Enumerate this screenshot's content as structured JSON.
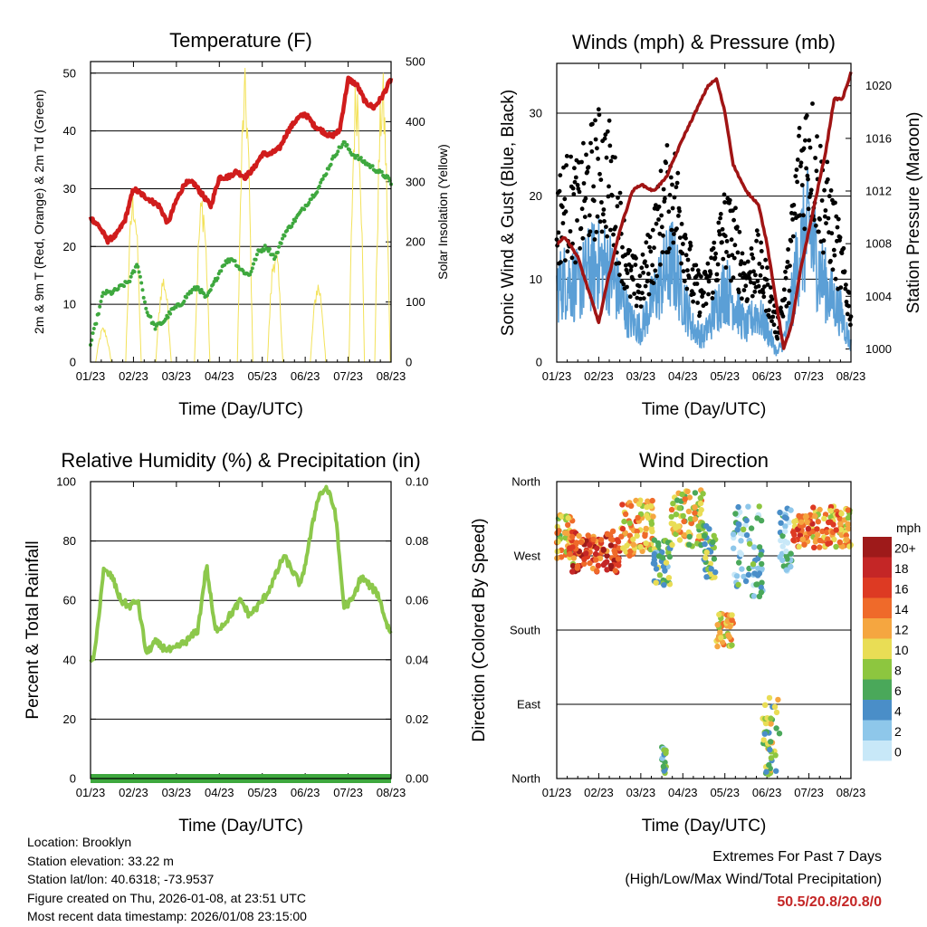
{
  "colors": {
    "temp": "#d01c1c",
    "dew": "#3ea83e",
    "solar": "#f3e25a",
    "gust": "#000000",
    "wind": "#5b9fd6",
    "pressure": "#a01414",
    "humidity": "#8cc84b",
    "precip": "#3ea83e",
    "extremes": "#c42626"
  },
  "speed_legend": {
    "title": "mph",
    "labels": [
      "20+",
      "18",
      "16",
      "14",
      "12",
      "10",
      "8",
      "6",
      "4",
      "2",
      "0"
    ],
    "colors": [
      "#9e1a1a",
      "#c42626",
      "#dd3a23",
      "#ef6a2a",
      "#f5a640",
      "#e9dd55",
      "#8dc63f",
      "#4aa85a",
      "#4a8ec8",
      "#8ec7ea",
      "#c8e8f8"
    ]
  },
  "chart_data": [
    {
      "id": "temperature",
      "type": "line",
      "title": "Temperature (F)",
      "xlabel": "Time (Day/UTC)",
      "ylabel": "2m & 9m T (Red, Orange) & 2m Td (Green)",
      "ylabel_right": "Solar Insolation (Yellow)",
      "x_ticks": [
        "01/23",
        "02/23",
        "03/23",
        "04/23",
        "05/23",
        "06/23",
        "07/23",
        "08/23"
      ],
      "ylim": [
        0,
        52
      ],
      "y_ticks": [
        0,
        10,
        20,
        30,
        40,
        50
      ],
      "ylim_right": [
        0,
        500
      ],
      "y_ticks_right": [
        0,
        100,
        200,
        300,
        400,
        500
      ],
      "series": [
        {
          "name": "2m/9m Temperature",
          "x": [
            0,
            0.2,
            0.4,
            0.6,
            0.8,
            1.0,
            1.2,
            1.4,
            1.6,
            1.8,
            2.0,
            2.2,
            2.4,
            2.6,
            2.8,
            3.0,
            3.2,
            3.4,
            3.6,
            3.8,
            4.0,
            4.2,
            4.4,
            4.6,
            4.8,
            5.0,
            5.2,
            5.4,
            5.6,
            5.8,
            6.0,
            6.2,
            6.4,
            6.6,
            6.8,
            7.0
          ],
          "values": [
            25,
            23.5,
            21,
            22,
            24.5,
            30,
            29,
            28,
            27,
            24,
            28,
            31,
            31,
            29,
            27,
            32,
            32,
            33,
            32,
            33.5,
            36,
            36,
            37,
            40,
            42,
            43,
            41,
            40,
            39,
            40,
            49,
            48,
            45,
            44,
            46,
            49
          ]
        },
        {
          "name": "2m Dewpoint",
          "x": [
            0,
            0.1,
            0.3,
            0.5,
            0.7,
            0.9,
            1.1,
            1.3,
            1.5,
            1.7,
            1.9,
            2.1,
            2.3,
            2.5,
            2.7,
            2.9,
            3.1,
            3.3,
            3.5,
            3.7,
            3.9,
            4.1,
            4.3,
            4.5,
            4.7,
            4.9,
            5.1,
            5.3,
            5.5,
            5.7,
            5.9,
            6.1,
            6.3,
            6.5,
            6.7,
            6.9,
            7.0
          ],
          "values": [
            3,
            6,
            12,
            12,
            13,
            14,
            17,
            9,
            6,
            7,
            9,
            10,
            12,
            13,
            11,
            14,
            17,
            18,
            16,
            15,
            19,
            20,
            18,
            22,
            24,
            26,
            28,
            30,
            33,
            36,
            38,
            36,
            35,
            34,
            33,
            32,
            31
          ]
        },
        {
          "name": "Solar Insolation",
          "axis": "right",
          "peaks_day": [
            0.3,
            1.0,
            1.7,
            2.6,
            3.6,
            4.3,
            5.3,
            6.2,
            6.8
          ],
          "peaks": [
            60,
            300,
            150,
            290,
            490,
            200,
            140,
            500,
            490
          ]
        }
      ]
    },
    {
      "id": "winds",
      "type": "line",
      "title": "Winds (mph) & Pressure (mb)",
      "xlabel": "Time (Day/UTC)",
      "ylabel": "Sonic Wind & Gust (Blue, Black)",
      "ylabel_right": "Station Pressure (Maroon)",
      "x_ticks": [
        "01/23",
        "02/23",
        "03/23",
        "04/23",
        "05/23",
        "06/23",
        "07/23",
        "08/23"
      ],
      "ylim": [
        0,
        36
      ],
      "y_ticks": [
        0,
        10,
        20,
        30
      ],
      "ylim_right": [
        999,
        1021.7
      ],
      "y_ticks_right": [
        1000,
        1004,
        1008,
        1012,
        1016,
        1020
      ],
      "series": [
        {
          "name": "Gust",
          "x": [
            0,
            0.25,
            0.5,
            0.75,
            1.0,
            1.25,
            1.5,
            1.75,
            2.0,
            2.25,
            2.5,
            2.75,
            3.0,
            3.25,
            3.5,
            3.75,
            4.0,
            4.25,
            4.5,
            4.75,
            5.0,
            5.25,
            5.5,
            5.75,
            6.0,
            6.25,
            6.5,
            6.75,
            7.0
          ],
          "values": [
            17,
            19,
            18,
            21,
            23,
            22,
            16,
            10,
            9,
            13,
            18,
            21,
            16,
            9,
            8,
            12,
            16,
            14,
            10,
            12,
            9,
            4,
            10,
            22,
            26,
            21,
            17,
            12,
            6
          ]
        },
        {
          "name": "Wind",
          "x": [
            0,
            0.25,
            0.5,
            0.75,
            1.0,
            1.25,
            1.5,
            1.75,
            2.0,
            2.25,
            2.5,
            2.75,
            3.0,
            3.25,
            3.5,
            3.75,
            4.0,
            4.25,
            4.5,
            4.75,
            5.0,
            5.25,
            5.5,
            5.75,
            6.0,
            6.25,
            6.5,
            6.75,
            7.0
          ],
          "values": [
            9,
            10,
            9,
            11,
            12,
            11,
            8,
            5,
            4,
            7,
            10,
            12,
            8,
            4,
            3,
            6,
            9,
            7,
            4,
            6,
            4,
            1,
            4,
            13,
            16,
            11,
            8,
            6,
            2
          ]
        },
        {
          "name": "Station Pressure",
          "axis": "right",
          "x": [
            0,
            0.2,
            0.5,
            0.8,
            1.0,
            1.2,
            1.5,
            1.8,
            2.0,
            2.3,
            2.6,
            3.0,
            3.3,
            3.6,
            3.8,
            4.0,
            4.2,
            4.5,
            4.8,
            5.0,
            5.2,
            5.4,
            5.6,
            5.8,
            6.0,
            6.2,
            6.4,
            6.6,
            6.8,
            7.0
          ],
          "values": [
            1008,
            1008.5,
            1007,
            1004,
            1002,
            1005,
            1009,
            1012,
            1012.5,
            1012,
            1013,
            1016,
            1018,
            1020,
            1020.5,
            1018,
            1014,
            1012,
            1011,
            1008,
            1004,
            1000,
            1002,
            1006,
            1009,
            1012,
            1015,
            1019,
            1019,
            1021
          ]
        }
      ]
    },
    {
      "id": "humidity",
      "type": "line",
      "title": "Relative Humidity (%) & Precipitation (in)",
      "xlabel": "Time (Day/UTC)",
      "ylabel": "Percent & Total Rainfall",
      "x_ticks": [
        "01/23",
        "02/23",
        "03/23",
        "04/23",
        "05/23",
        "06/23",
        "07/23",
        "08/23"
      ],
      "ylim": [
        0,
        100
      ],
      "y_ticks": [
        0,
        20,
        40,
        60,
        80,
        100
      ],
      "ylim_right": [
        0,
        0.1
      ],
      "y_ticks_right": [
        "0.00",
        "0.02",
        "0.04",
        "0.06",
        "0.08",
        "0.10"
      ],
      "series": [
        {
          "name": "Relative Humidity",
          "x": [
            0,
            0.1,
            0.3,
            0.5,
            0.7,
            0.9,
            1.1,
            1.3,
            1.5,
            1.7,
            1.9,
            2.1,
            2.3,
            2.5,
            2.7,
            2.9,
            3.1,
            3.3,
            3.5,
            3.7,
            3.9,
            4.1,
            4.3,
            4.5,
            4.7,
            4.9,
            5.1,
            5.3,
            5.5,
            5.7,
            5.9,
            6.1,
            6.3,
            6.5,
            6.7,
            6.9,
            7.0
          ],
          "values": [
            39,
            42,
            70,
            68,
            60,
            58,
            60,
            42,
            46,
            44,
            43,
            45,
            47,
            50,
            72,
            50,
            52,
            56,
            60,
            55,
            58,
            62,
            68,
            75,
            70,
            65,
            80,
            95,
            98,
            90,
            58,
            60,
            68,
            65,
            62,
            52,
            49
          ]
        },
        {
          "name": "Total Precipitation",
          "axis": "right",
          "x": [
            0,
            7
          ],
          "values": [
            0,
            0
          ]
        }
      ]
    },
    {
      "id": "wind_direction",
      "type": "scatter",
      "title": "Wind Direction",
      "xlabel": "Time (Day/UTC)",
      "ylabel": "Direction (Colored By Speed)",
      "x_ticks": [
        "01/23",
        "02/23",
        "03/23",
        "04/23",
        "05/23",
        "06/23",
        "07/23",
        "08/23"
      ],
      "y_ticks": [
        "North",
        "West",
        "South",
        "East",
        "North"
      ],
      "ylim": [
        0,
        360
      ],
      "clusters": [
        {
          "x0": 0,
          "x1": 0.4,
          "y0": 260,
          "y1": 320,
          "speed": 10
        },
        {
          "x0": 0.3,
          "x1": 1.5,
          "y0": 250,
          "y1": 300,
          "speed": 16
        },
        {
          "x0": 1.5,
          "x1": 2.3,
          "y0": 270,
          "y1": 340,
          "speed": 12
        },
        {
          "x0": 2.3,
          "x1": 2.7,
          "y0": 230,
          "y1": 290,
          "speed": 6
        },
        {
          "x0": 2.7,
          "x1": 3.5,
          "y0": 280,
          "y1": 350,
          "speed": 10
        },
        {
          "x0": 3.5,
          "x1": 3.8,
          "y0": 240,
          "y1": 310,
          "speed": 7
        },
        {
          "x0": 3.8,
          "x1": 4.2,
          "y0": 160,
          "y1": 200,
          "speed": 11
        },
        {
          "x0": 4.2,
          "x1": 4.9,
          "y0": 220,
          "y1": 330,
          "speed": 4
        },
        {
          "x0": 4.9,
          "x1": 5.3,
          "y0": 5,
          "y1": 100,
          "speed": 8
        },
        {
          "x0": 5.3,
          "x1": 5.6,
          "y0": 250,
          "y1": 330,
          "speed": 3
        },
        {
          "x0": 5.6,
          "x1": 6.1,
          "y0": 280,
          "y1": 320,
          "speed": 14
        },
        {
          "x0": 6.1,
          "x1": 7.0,
          "y0": 280,
          "y1": 330,
          "speed": 12
        },
        {
          "x0": 2.5,
          "x1": 2.6,
          "y0": 5,
          "y1": 40,
          "speed": 6
        }
      ]
    }
  ],
  "footer": {
    "location": "Location: Brooklyn",
    "elevation": "Station elevation: 33.22 m",
    "latlon": "Station lat/lon: 40.6318; -73.9537",
    "created": "Figure created on Thu, 2026-01-08, at 23:51 UTC",
    "recent": "Most recent data timestamp: 2026/01/08 23:15:00"
  },
  "extremes": {
    "title": "Extremes For Past 7 Days",
    "subtitle": "(High/Low/Max Wind/Total Precipitation)",
    "values": "50.5/20.8/20.8/0"
  }
}
